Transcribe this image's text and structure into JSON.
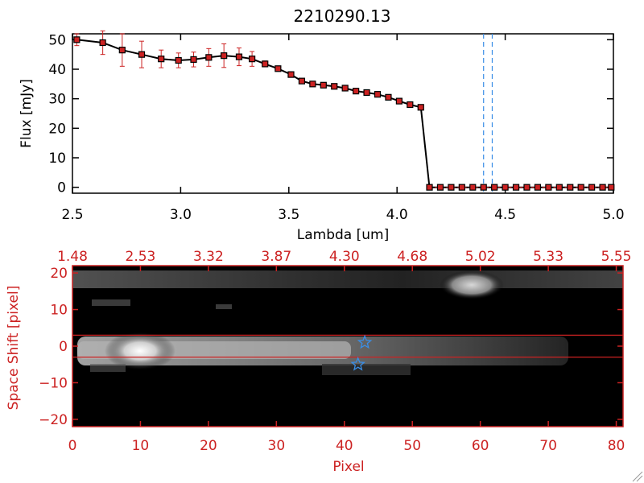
{
  "colors": {
    "black": "#000000",
    "red": "#cc2222",
    "blue": "#3a8ee6",
    "background": "#ffffff"
  },
  "chart_data": [
    {
      "type": "line",
      "title": "2210290.13",
      "xlabel": "Lambda [um]",
      "ylabel": "Flux [mJy]",
      "xlim": [
        2.5,
        5.0
      ],
      "ylim": [
        -2,
        52
      ],
      "xticks": [
        2.5,
        3.0,
        3.5,
        4.0,
        4.5,
        5.0
      ],
      "xtick_labels": [
        "2.5",
        "3.0",
        "3.5",
        "4.0",
        "4.5",
        "5.0"
      ],
      "yticks": [
        0,
        10,
        20,
        30,
        40,
        50
      ],
      "ytick_labels": [
        "0",
        "10",
        "20",
        "30",
        "40",
        "50"
      ],
      "grid": false,
      "series": [
        {
          "x": [
            2.52,
            2.64,
            2.73,
            2.82,
            2.91,
            2.99,
            3.06,
            3.13,
            3.2,
            3.27,
            3.33,
            3.39,
            3.45,
            3.51,
            3.56,
            3.61,
            3.66,
            3.71,
            3.76,
            3.81,
            3.86,
            3.91,
            3.96,
            4.01,
            4.06,
            4.11,
            4.15,
            4.2,
            4.25,
            4.3,
            4.35,
            4.4,
            4.45,
            4.5,
            4.55,
            4.6,
            4.65,
            4.7,
            4.75,
            4.8,
            4.85,
            4.9,
            4.95,
            4.99
          ],
          "y": [
            50,
            49,
            46.5,
            45,
            43.5,
            43,
            43.3,
            44,
            44.6,
            44.2,
            43.5,
            41.8,
            40.2,
            38.2,
            36,
            35,
            34.6,
            34.2,
            33.6,
            32.6,
            32.1,
            31.5,
            30.5,
            29.2,
            28,
            27.1,
            0,
            0,
            0,
            0,
            0,
            0,
            0,
            0,
            0,
            0,
            0,
            0,
            0,
            0,
            0,
            0,
            0,
            0
          ],
          "yerr": [
            2,
            4,
            5.5,
            4.5,
            3,
            2.5,
            2.5,
            3,
            4,
            3,
            2.5,
            1,
            0.5,
            0.5,
            0.5,
            0.5,
            0.5,
            0.5,
            0.5,
            0.5,
            0.5,
            0.5,
            0.5,
            0.5,
            0.5,
            0.5,
            0,
            0,
            0,
            0,
            0,
            0,
            0,
            0,
            0,
            0,
            0,
            0,
            0,
            0,
            0,
            0,
            0,
            0
          ]
        }
      ],
      "vlines": [
        4.4,
        4.44
      ]
    },
    {
      "type": "heatmap",
      "xlabel": "Pixel",
      "ylabel": "Space Shift [pixel]",
      "xlim": [
        0,
        81
      ],
      "ylim": [
        -22,
        22
      ],
      "xticks": [
        0,
        10,
        20,
        30,
        40,
        50,
        60,
        70,
        80
      ],
      "xtick_labels": [
        "0",
        "10",
        "20",
        "30",
        "40",
        "50",
        "60",
        "70",
        "80"
      ],
      "yticks": [
        -20,
        -10,
        0,
        10,
        20
      ],
      "ytick_labels": [
        "−20",
        "−10",
        "0",
        "10",
        "20"
      ],
      "top_xticks": [
        0,
        10,
        20,
        30,
        40,
        50,
        60,
        70,
        80
      ],
      "top_xtick_labels": [
        "1.48",
        "2.53",
        "3.32",
        "3.87",
        "4.30",
        "4.68",
        "5.02",
        "5.33",
        "5.55"
      ],
      "hlines": [
        3,
        -3
      ],
      "stars": [
        {
          "x": 43,
          "y": 1
        },
        {
          "x": 42,
          "y": -5
        }
      ]
    }
  ]
}
